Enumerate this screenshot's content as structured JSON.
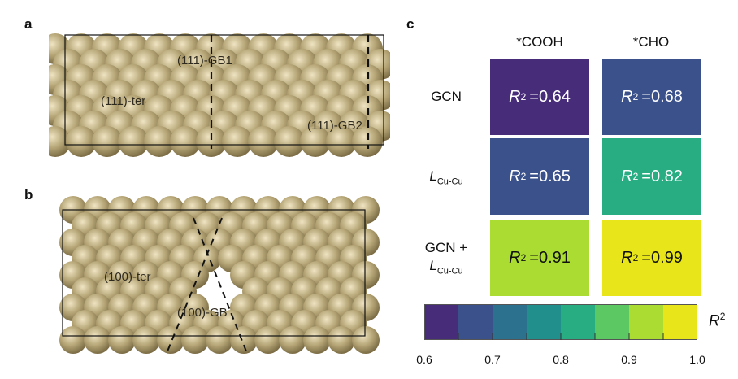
{
  "panels": {
    "a": {
      "letter": "a",
      "labels": [
        "(111)-GB1",
        "(111)-ter",
        "(111)-GB2"
      ]
    },
    "b": {
      "letter": "b",
      "labels": [
        "(100)-ter",
        "(100)-GB"
      ]
    },
    "c": {
      "letter": "c"
    }
  },
  "colors": {
    "atom": "#b5a576",
    "atom_highlight": "#efe4c2",
    "atom_shadow": "#7c6d46",
    "colormap": [
      "#472c7a",
      "#3b518b",
      "#2c718e",
      "#21908d",
      "#27ad81",
      "#5cc863",
      "#aadc32",
      "#e8e51a"
    ]
  },
  "chart_data": {
    "type": "heatmap",
    "columns": [
      "*COOH",
      "*CHO"
    ],
    "rows": [
      {
        "label": "GCN",
        "label_sub": ""
      },
      {
        "label": "L",
        "label_sub": "Cu-Cu"
      },
      {
        "label": "GCN +",
        "label_line2": "L",
        "label_sub": "Cu-Cu"
      }
    ],
    "metric_symbol": "R",
    "metric_sup": "2",
    "values": [
      [
        0.64,
        0.68
      ],
      [
        0.65,
        0.82
      ],
      [
        0.91,
        0.99
      ]
    ],
    "value_text": [
      [
        "=0.64",
        "=0.68"
      ],
      [
        "=0.65",
        "=0.82"
      ],
      [
        "=0.91",
        "=0.99"
      ]
    ],
    "colorbar": {
      "range": [
        0.6,
        1.0
      ],
      "ticks": [
        "0.6",
        "0.7",
        "0.8",
        "0.9",
        "1.0"
      ],
      "label": "R",
      "label_sup": "2"
    }
  }
}
